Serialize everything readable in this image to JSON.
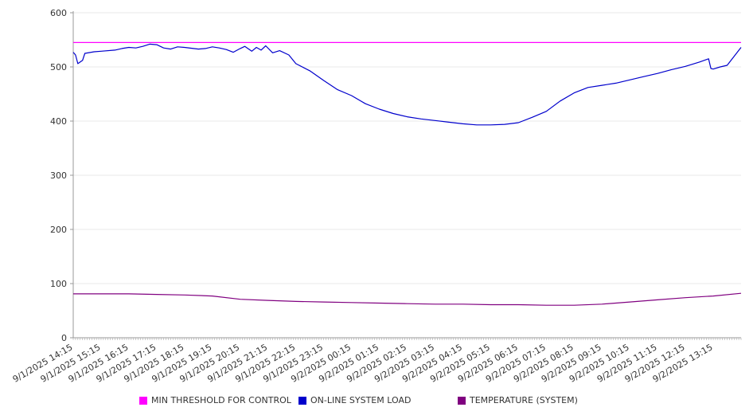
{
  "chart_data": {
    "type": "line",
    "title": "",
    "xlabel": "",
    "ylabel": "",
    "ylim": [
      0,
      600
    ],
    "yticks": [
      0,
      100,
      200,
      300,
      400,
      500,
      600
    ],
    "x_tick_labels": [
      "9/1/2025 14:15",
      "9/1/2025 15:15",
      "9/1/2025 16:15",
      "9/1/2025 17:15",
      "9/1/2025 18:15",
      "9/1/2025 19:15",
      "9/1/2025 20:15",
      "9/1/2025 21:15",
      "9/1/2025 22:15",
      "9/1/2025 23:15",
      "9/2/2025 00:15",
      "9/2/2025 01:15",
      "9/2/2025 02:15",
      "9/2/2025 03:15",
      "9/2/2025 04:15",
      "9/2/2025 05:15",
      "9/2/2025 06:15",
      "9/2/2025 07:15",
      "9/2/2025 08:15",
      "9/2/2025 09:15",
      "9/2/2025 10:15",
      "9/2/2025 11:15",
      "9/2/2025 12:15",
      "9/2/2025 13:15"
    ],
    "x_start": "9/1/2025 14:15",
    "x_end": "9/2/2025 14:15",
    "grid": "horizontal",
    "legend_position": "bottom",
    "series": [
      {
        "name": "MIN THRESHOLD FOR CONTROL",
        "color": "#ff00ff",
        "points": [
          [
            "9/1/2025 14:15",
            545
          ],
          [
            "9/2/2025 14:15",
            545
          ]
        ]
      },
      {
        "name": "ON-LINE SYSTEM LOAD",
        "color": "#0000cc",
        "points": [
          [
            "9/1/2025 14:15",
            527
          ],
          [
            "9/1/2025 14:20",
            522
          ],
          [
            "9/1/2025 14:25",
            506
          ],
          [
            "9/1/2025 14:35",
            512
          ],
          [
            "9/1/2025 14:40",
            525
          ],
          [
            "9/1/2025 15:00",
            528
          ],
          [
            "9/1/2025 15:15",
            529
          ],
          [
            "9/1/2025 15:45",
            531
          ],
          [
            "9/1/2025 16:00",
            534
          ],
          [
            "9/1/2025 16:15",
            536
          ],
          [
            "9/1/2025 16:30",
            535
          ],
          [
            "9/1/2025 16:45",
            538
          ],
          [
            "9/1/2025 17:00",
            542
          ],
          [
            "9/1/2025 17:15",
            541
          ],
          [
            "9/1/2025 17:30",
            535
          ],
          [
            "9/1/2025 17:45",
            533
          ],
          [
            "9/1/2025 18:00",
            537
          ],
          [
            "9/1/2025 18:15",
            536
          ],
          [
            "9/1/2025 18:45",
            533
          ],
          [
            "9/1/2025 19:00",
            534
          ],
          [
            "9/1/2025 19:15",
            537
          ],
          [
            "9/1/2025 19:30",
            535
          ],
          [
            "9/1/2025 19:45",
            532
          ],
          [
            "9/1/2025 20:00",
            527
          ],
          [
            "9/1/2025 20:15",
            534
          ],
          [
            "9/1/2025 20:25",
            538
          ],
          [
            "9/1/2025 20:40",
            529
          ],
          [
            "9/1/2025 20:50",
            536
          ],
          [
            "9/1/2025 21:00",
            531
          ],
          [
            "9/1/2025 21:10",
            539
          ],
          [
            "9/1/2025 21:25",
            526
          ],
          [
            "9/1/2025 21:40",
            530
          ],
          [
            "9/1/2025 22:00",
            522
          ],
          [
            "9/1/2025 22:15",
            506
          ],
          [
            "9/1/2025 22:45",
            493
          ],
          [
            "9/1/2025 23:15",
            475
          ],
          [
            "9/1/2025 23:45",
            458
          ],
          [
            "9/2/2025 00:15",
            447
          ],
          [
            "9/2/2025 00:45",
            432
          ],
          [
            "9/2/2025 01:15",
            422
          ],
          [
            "9/2/2025 01:45",
            414
          ],
          [
            "9/2/2025 02:15",
            408
          ],
          [
            "9/2/2025 02:45",
            404
          ],
          [
            "9/2/2025 03:15",
            401
          ],
          [
            "9/2/2025 03:45",
            398
          ],
          [
            "9/2/2025 04:15",
            395
          ],
          [
            "9/2/2025 04:45",
            393
          ],
          [
            "9/2/2025 05:15",
            393
          ],
          [
            "9/2/2025 05:45",
            394
          ],
          [
            "9/2/2025 06:15",
            397
          ],
          [
            "9/2/2025 06:45",
            407
          ],
          [
            "9/2/2025 07:15",
            418
          ],
          [
            "9/2/2025 07:45",
            437
          ],
          [
            "9/2/2025 08:15",
            452
          ],
          [
            "9/2/2025 08:45",
            462
          ],
          [
            "9/2/2025 09:15",
            466
          ],
          [
            "9/2/2025 09:45",
            470
          ],
          [
            "9/2/2025 10:15",
            476
          ],
          [
            "9/2/2025 10:45",
            482
          ],
          [
            "9/2/2025 11:15",
            488
          ],
          [
            "9/2/2025 11:45",
            495
          ],
          [
            "9/2/2025 12:15",
            501
          ],
          [
            "9/2/2025 12:45",
            509
          ],
          [
            "9/2/2025 13:05",
            515
          ],
          [
            "9/2/2025 13:10",
            497
          ],
          [
            "9/2/2025 13:15",
            496
          ],
          [
            "9/2/2025 13:30",
            500
          ],
          [
            "9/2/2025 13:45",
            503
          ],
          [
            "9/2/2025 14:15",
            536
          ]
        ]
      },
      {
        "name": "TEMPERATURE (SYSTEM)",
        "color": "#800080",
        "points": [
          [
            "9/1/2025 14:15",
            81
          ],
          [
            "9/1/2025 16:15",
            81
          ],
          [
            "9/1/2025 17:15",
            80
          ],
          [
            "9/1/2025 18:15",
            79
          ],
          [
            "9/1/2025 19:15",
            77
          ],
          [
            "9/1/2025 20:15",
            71
          ],
          [
            "9/1/2025 21:15",
            69
          ],
          [
            "9/1/2025 22:15",
            67
          ],
          [
            "9/1/2025 23:15",
            66
          ],
          [
            "9/2/2025 00:15",
            65
          ],
          [
            "9/2/2025 01:15",
            64
          ],
          [
            "9/2/2025 02:15",
            63
          ],
          [
            "9/2/2025 03:15",
            62
          ],
          [
            "9/2/2025 04:15",
            62
          ],
          [
            "9/2/2025 05:15",
            61
          ],
          [
            "9/2/2025 06:15",
            61
          ],
          [
            "9/2/2025 07:15",
            60
          ],
          [
            "9/2/2025 08:15",
            60
          ],
          [
            "9/2/2025 09:15",
            62
          ],
          [
            "9/2/2025 10:15",
            66
          ],
          [
            "9/2/2025 11:15",
            70
          ],
          [
            "9/2/2025 12:15",
            74
          ],
          [
            "9/2/2025 13:15",
            77
          ],
          [
            "9/2/2025 14:15",
            82
          ]
        ]
      }
    ]
  }
}
